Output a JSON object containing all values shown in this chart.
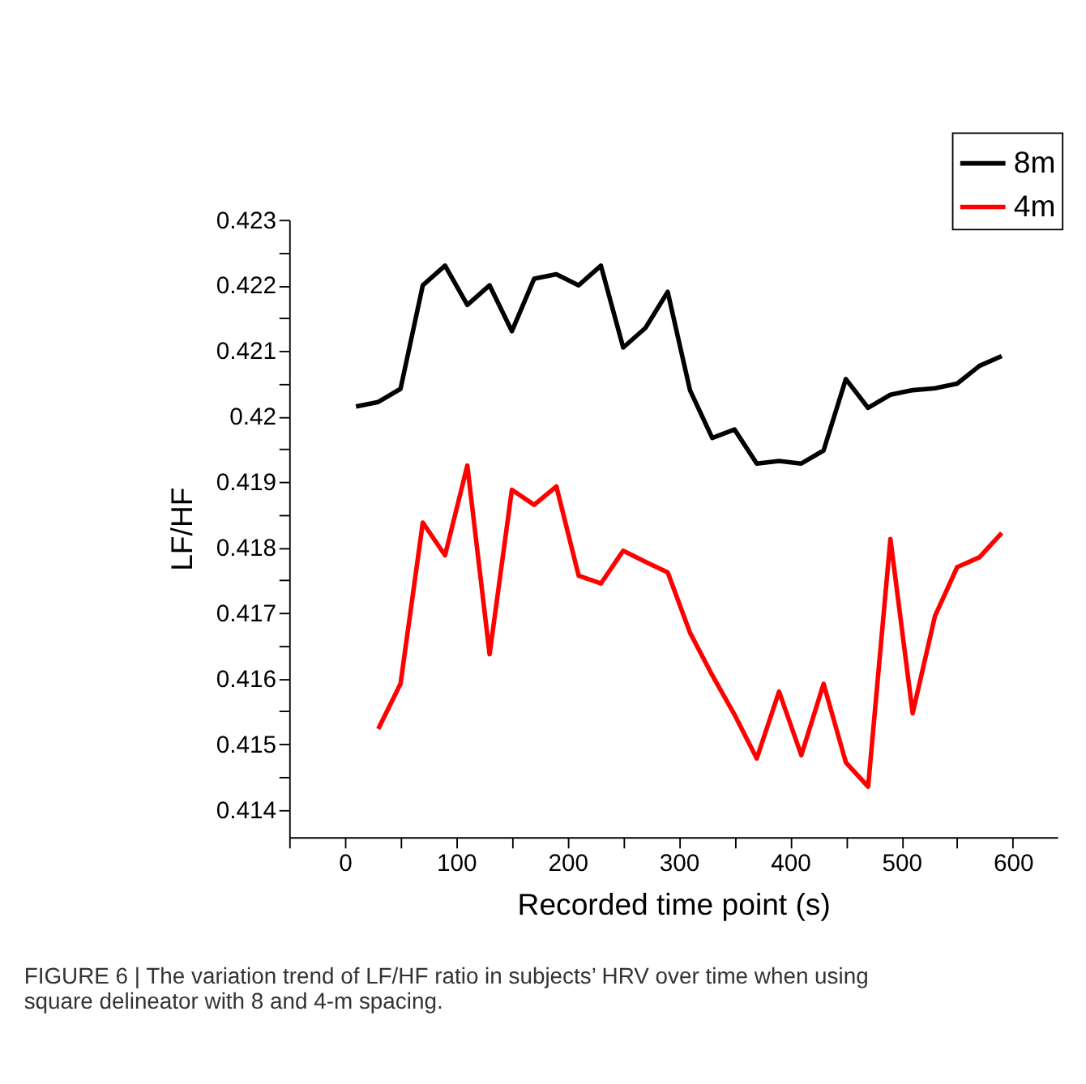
{
  "chart_data": {
    "type": "line",
    "xlabel": "Recorded time point (s)",
    "ylabel": "LF/HF",
    "annotations": [
      "FIGURE 6 | The variation trend of LF/HF ratio in subjects’ HRV over time when using square delineator with 8 and 4-m spacing."
    ],
    "series": [
      {
        "name": "8m",
        "color": "#000000",
        "x": [
          10,
          30,
          50,
          70,
          90,
          110,
          130,
          150,
          170,
          190,
          210,
          230,
          250,
          270,
          290,
          310,
          330,
          350,
          370,
          390,
          410,
          430,
          450,
          470,
          490,
          510,
          530,
          550,
          570,
          590
        ],
        "values": [
          0.42015,
          0.42022,
          0.42042,
          0.422,
          0.4223,
          0.4217,
          0.422,
          0.4213,
          0.4221,
          0.42217,
          0.422,
          0.4223,
          0.42105,
          0.42135,
          0.4219,
          0.4204,
          0.41967,
          0.4198,
          0.41928,
          0.41932,
          0.41928,
          0.41948,
          0.42057,
          0.42013,
          0.42033,
          0.4204,
          0.42043,
          0.4205,
          0.42077,
          0.42092
        ]
      },
      {
        "name": "4m",
        "color": "#ff0000",
        "x": [
          30,
          50,
          70,
          90,
          110,
          130,
          150,
          170,
          190,
          210,
          230,
          250,
          270,
          290,
          310,
          330,
          350,
          370,
          390,
          410,
          430,
          450,
          470,
          490,
          510,
          530,
          550,
          570,
          590
        ],
        "values": [
          0.41523,
          0.41592,
          0.41838,
          0.41788,
          0.41925,
          0.41637,
          0.41888,
          0.41865,
          0.41893,
          0.41757,
          0.41745,
          0.41795,
          0.41778,
          0.41762,
          0.4167,
          0.41605,
          0.41545,
          0.41478,
          0.4158,
          0.41483,
          0.41592,
          0.41472,
          0.41435,
          0.41813,
          0.41547,
          0.41695,
          0.4177,
          0.41785,
          0.41822
        ]
      }
    ],
    "xlim": [
      -50,
      640
    ],
    "xticks": [
      {
        "value": -50,
        "label": null
      },
      0,
      {
        "value": 50,
        "label": null
      },
      100,
      {
        "value": 150,
        "label": null
      },
      200,
      {
        "value": 250,
        "label": null
      },
      300,
      {
        "value": 350,
        "label": null
      },
      400,
      {
        "value": 450,
        "label": null
      },
      500,
      {
        "value": 550,
        "label": null
      },
      600
    ],
    "ylim": [
      0.41358,
      0.423
    ],
    "yticks": [
      0.414,
      {
        "value": 0.4145,
        "label": null
      },
      0.415,
      {
        "value": 0.4155,
        "label": null
      },
      0.416,
      {
        "value": 0.4165,
        "label": null
      },
      0.417,
      {
        "value": 0.4175,
        "label": null
      },
      0.418,
      {
        "value": 0.4185,
        "label": null
      },
      0.419,
      {
        "value": 0.4195,
        "label": null
      },
      0.42,
      {
        "value": 0.4205,
        "label": null
      },
      0.421,
      {
        "value": 0.4215,
        "label": null
      },
      0.422,
      {
        "value": 0.4225,
        "label": null
      },
      0.423
    ],
    "grid": false,
    "legend": "top right",
    "marker": "none",
    "line_style": "solid"
  }
}
